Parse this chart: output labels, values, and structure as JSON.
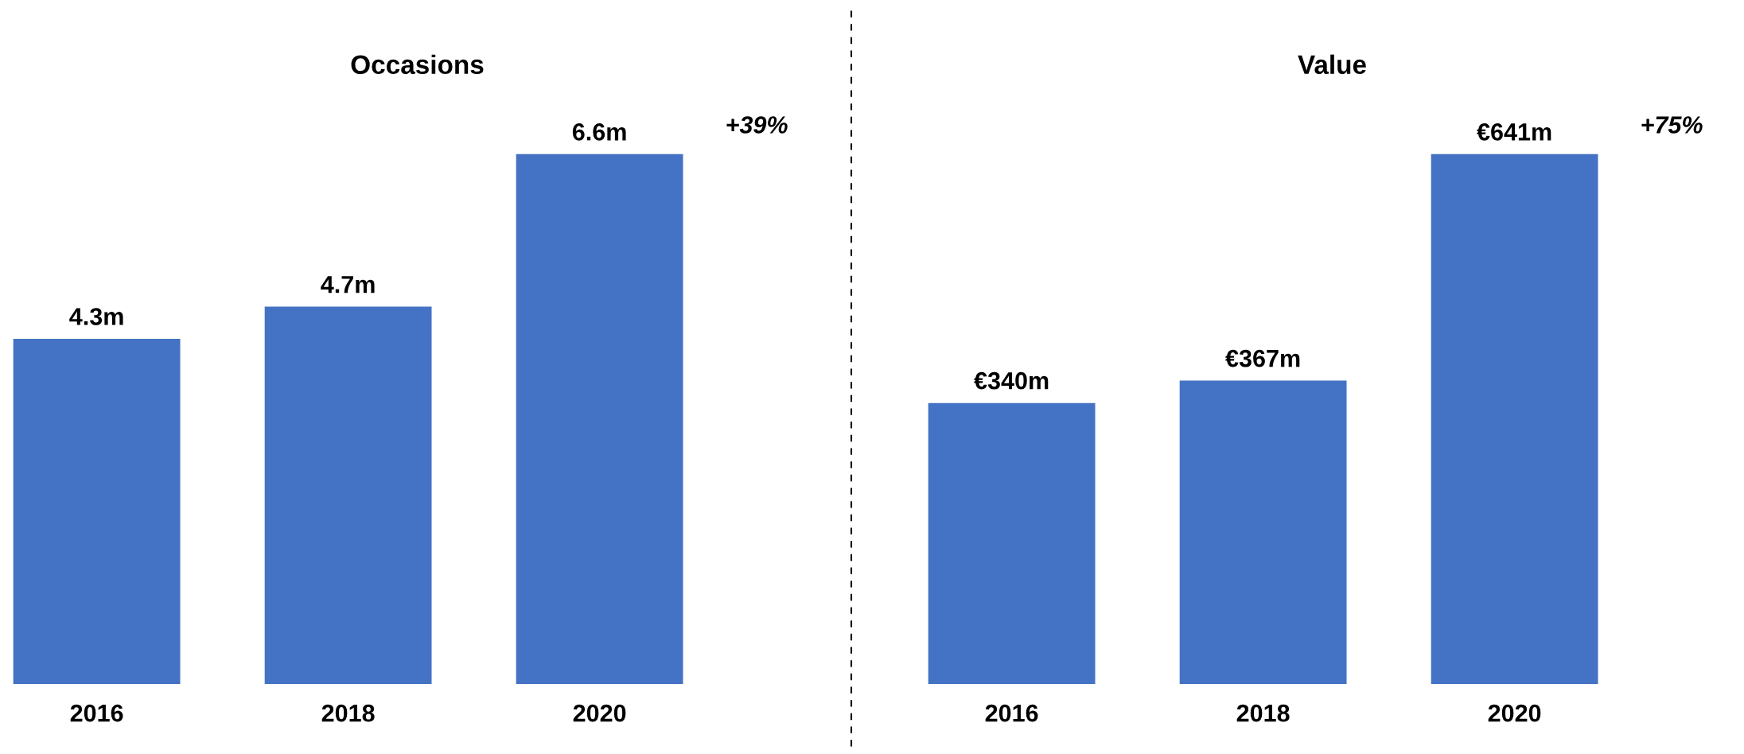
{
  "chart_data": [
    {
      "type": "bar",
      "title": "Occasions",
      "categories": [
        "2016",
        "2018",
        "2020"
      ],
      "values": [
        4.3,
        4.7,
        6.6
      ],
      "value_labels": [
        "4.3m",
        "4.7m",
        "6.6m"
      ],
      "color": "#4472c4",
      "annotations": [
        "+39%"
      ],
      "tick_labels": "x",
      "grid": false
    },
    {
      "type": "bar",
      "title": "Value",
      "categories": [
        "2016",
        "2018",
        "2020"
      ],
      "values": [
        340,
        367,
        641
      ],
      "value_labels": [
        "€340m",
        "€367m",
        "€641m"
      ],
      "color": "#4472c4",
      "annotations": [
        "+75%"
      ],
      "tick_labels": "x",
      "grid": false
    }
  ]
}
